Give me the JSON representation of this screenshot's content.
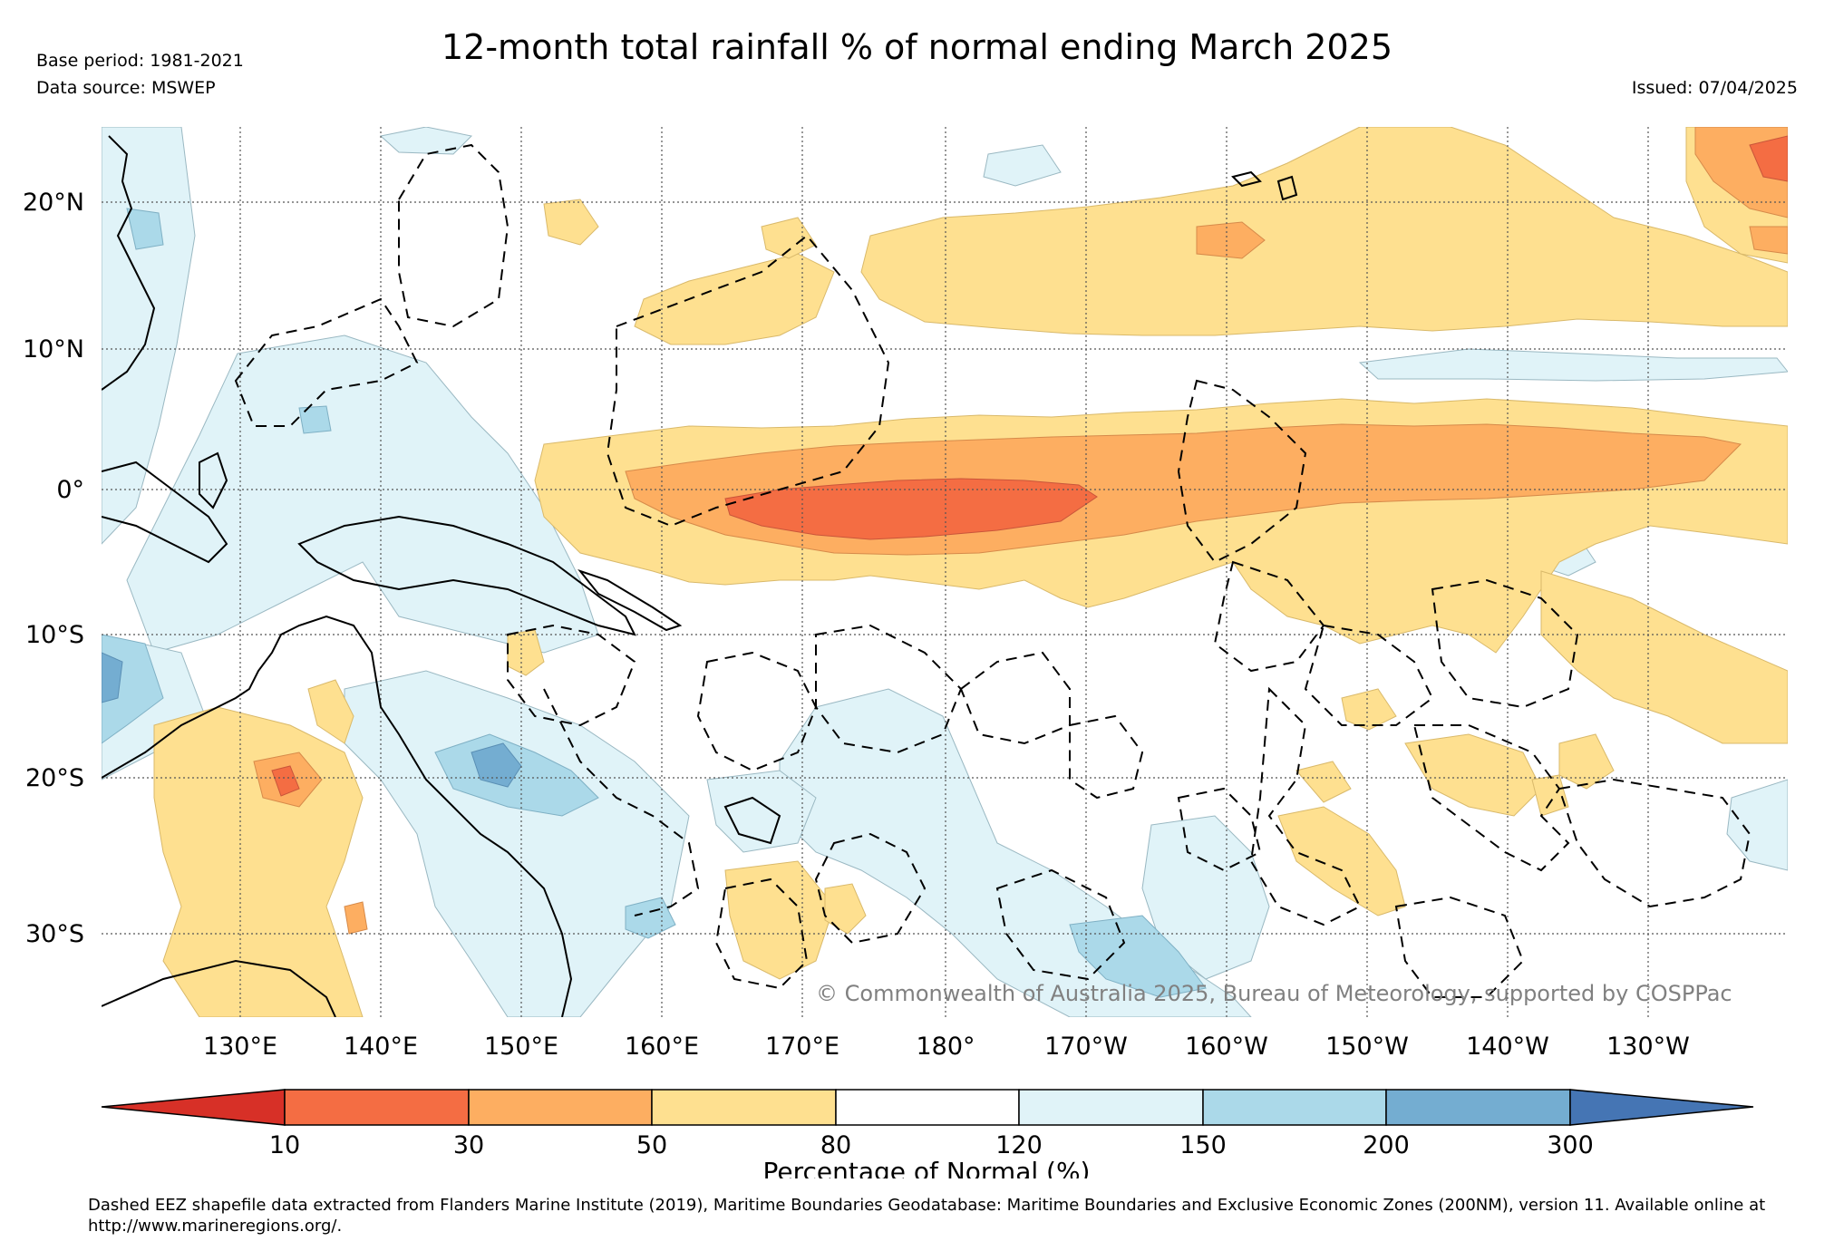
{
  "title": "12-month total rainfall % of normal ending March 2025",
  "meta": {
    "base_period": "Base period: 1981-2021",
    "data_source": "Data source: MSWEP",
    "issued": "Issued: 07/04/2025"
  },
  "map": {
    "lat_labels": [
      "20°N",
      "10°N",
      "0°",
      "10°S",
      "20°S",
      "30°S"
    ],
    "lon_labels": [
      "130°E",
      "140°E",
      "150°E",
      "160°E",
      "170°E",
      "180°",
      "170°W",
      "160°W",
      "150°W",
      "140°W",
      "130°W"
    ],
    "copyright": "© Commonwealth of Australia 2025, Bureau of Meteorology, supported by COSPPac"
  },
  "colorbar": {
    "title": "Percentage of Normal (%)",
    "ticks": [
      "10",
      "30",
      "50",
      "80",
      "120",
      "150",
      "200",
      "300"
    ],
    "colors": {
      "lt10": "#d73027",
      "10-30": "#f46d43",
      "30-50": "#fdae61",
      "50-80": "#fee090",
      "80-120": "#ffffff",
      "120-150": "#e0f3f8",
      "150-200": "#abd9e9",
      "200-300": "#74add1",
      "gt300": "#4575b4"
    }
  },
  "footnote": "Dashed EEZ shapefile data extracted from Flanders Marine Institute (2019), Maritime Boundaries Geodatabase: Maritime Boundaries and Exclusive Economic Zones (200NM), version 11. Available online at http://www.marineregions.org/."
}
